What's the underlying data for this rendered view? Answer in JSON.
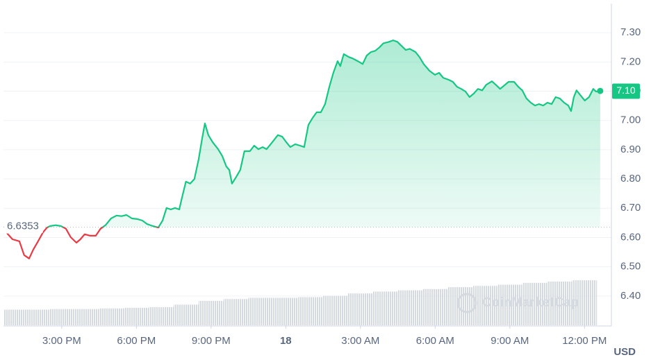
{
  "chart_data": {
    "type": "line",
    "up_color": "#16c784",
    "down_color": "#ea3943",
    "baseline": 6.6353,
    "last_price": {
      "value": 7.1,
      "label": "7.10"
    },
    "currency": "USD",
    "watermark": "CoinMarketCap",
    "xlim": [
      12.66,
      37.08
    ],
    "ylim": [
      6.3,
      7.4
    ],
    "xticks": [
      {
        "value": 15,
        "label": "3:00 PM"
      },
      {
        "value": 18,
        "label": "6:00 PM"
      },
      {
        "value": 21,
        "label": "9:00 PM"
      },
      {
        "value": 24,
        "label": "18"
      },
      {
        "value": 27,
        "label": "3:00 AM"
      },
      {
        "value": 30,
        "label": "6:00 AM"
      },
      {
        "value": 33,
        "label": "9:00 AM"
      },
      {
        "value": 36,
        "label": "12:00 PM"
      }
    ],
    "yticks": [
      {
        "value": 6.4,
        "label": "6.40"
      },
      {
        "value": 6.5,
        "label": "6.50"
      },
      {
        "value": 6.6,
        "label": "6.60"
      },
      {
        "value": 6.7,
        "label": "6.70"
      },
      {
        "value": 6.8,
        "label": "6.80"
      },
      {
        "value": 6.9,
        "label": "6.90"
      },
      {
        "value": 7.0,
        "label": "7.00"
      },
      {
        "value": 7.1,
        "label": "7.10"
      },
      {
        "value": 7.2,
        "label": "7.20"
      },
      {
        "value": 7.3,
        "label": "7.30"
      }
    ],
    "grid": true,
    "x": [
      12.8,
      13.02,
      13.3,
      13.49,
      13.69,
      13.86,
      14.05,
      14.25,
      14.41,
      14.53,
      14.75,
      14.97,
      15.17,
      15.36,
      15.59,
      15.75,
      15.92,
      16.14,
      16.37,
      16.56,
      16.76,
      16.98,
      17.2,
      17.4,
      17.6,
      17.82,
      18.04,
      18.24,
      18.43,
      18.66,
      18.88,
      19.05,
      19.21,
      19.38,
      19.55,
      19.72,
      19.83,
      19.99,
      20.16,
      20.33,
      20.5,
      20.64,
      20.75,
      20.89,
      21.06,
      21.28,
      21.45,
      21.61,
      21.73,
      21.84,
      22.01,
      22.17,
      22.34,
      22.56,
      22.73,
      22.9,
      23.07,
      23.23,
      23.46,
      23.68,
      23.85,
      24.02,
      24.18,
      24.38,
      24.57,
      24.74,
      24.91,
      25.08,
      25.24,
      25.41,
      25.58,
      25.75,
      25.91,
      26.08,
      26.19,
      26.33,
      26.53,
      26.69,
      26.89,
      27.09,
      27.25,
      27.42,
      27.59,
      27.76,
      27.92,
      28.15,
      28.31,
      28.48,
      28.65,
      28.82,
      28.98,
      29.21,
      29.37,
      29.54,
      29.77,
      29.99,
      30.16,
      30.32,
      30.55,
      30.71,
      30.88,
      31.05,
      31.22,
      31.38,
      31.55,
      31.72,
      31.89,
      32.05,
      32.28,
      32.44,
      32.61,
      32.78,
      32.95,
      33.17,
      33.34,
      33.5,
      33.67,
      33.84,
      34.01,
      34.17,
      34.34,
      34.51,
      34.68,
      34.84,
      35.01,
      35.18,
      35.35,
      35.46,
      35.57,
      35.68,
      35.85,
      36.01,
      36.18,
      36.35,
      36.46,
      36.63
    ],
    "values": [
      6.615,
      6.594,
      6.587,
      6.54,
      6.528,
      6.559,
      6.587,
      6.618,
      6.634,
      6.639,
      6.642,
      6.639,
      6.63,
      6.601,
      6.582,
      6.594,
      6.611,
      6.606,
      6.606,
      6.63,
      6.642,
      6.665,
      6.675,
      6.673,
      6.677,
      6.665,
      6.663,
      6.658,
      6.646,
      6.639,
      6.634,
      6.658,
      6.701,
      6.696,
      6.701,
      6.696,
      6.736,
      6.791,
      6.784,
      6.8,
      6.867,
      6.938,
      6.99,
      6.95,
      6.926,
      6.902,
      6.878,
      6.843,
      6.831,
      6.784,
      6.807,
      6.831,
      6.895,
      6.895,
      6.914,
      6.902,
      6.909,
      6.902,
      6.926,
      6.95,
      6.945,
      6.926,
      6.909,
      6.919,
      6.914,
      6.909,
      6.985,
      7.009,
      7.028,
      7.028,
      7.056,
      7.115,
      7.163,
      7.203,
      7.186,
      7.227,
      7.217,
      7.212,
      7.203,
      7.193,
      7.222,
      7.234,
      7.238,
      7.25,
      7.264,
      7.269,
      7.274,
      7.269,
      7.255,
      7.241,
      7.245,
      7.234,
      7.217,
      7.193,
      7.17,
      7.156,
      7.163,
      7.146,
      7.139,
      7.132,
      7.115,
      7.108,
      7.099,
      7.08,
      7.092,
      7.108,
      7.103,
      7.122,
      7.134,
      7.122,
      7.108,
      7.12,
      7.132,
      7.132,
      7.115,
      7.103,
      7.075,
      7.061,
      7.051,
      7.056,
      7.051,
      7.061,
      7.056,
      7.08,
      7.075,
      7.061,
      7.051,
      7.032,
      7.08,
      7.103,
      7.085,
      7.068,
      7.08,
      7.108,
      7.099,
      7.101
    ],
    "volume": {
      "x": [
        13,
        14,
        15,
        16,
        17,
        18,
        19,
        20,
        21,
        22,
        23,
        24,
        25,
        26,
        27,
        28,
        29,
        30,
        31,
        32,
        33,
        34,
        35,
        36
      ],
      "values": [
        25,
        25,
        26,
        26,
        27,
        28,
        29,
        33,
        39,
        42,
        44,
        44,
        45,
        47,
        51,
        54,
        56,
        58,
        61,
        63,
        65,
        68,
        70,
        72
      ],
      "lim": [
        0,
        100
      ]
    }
  }
}
